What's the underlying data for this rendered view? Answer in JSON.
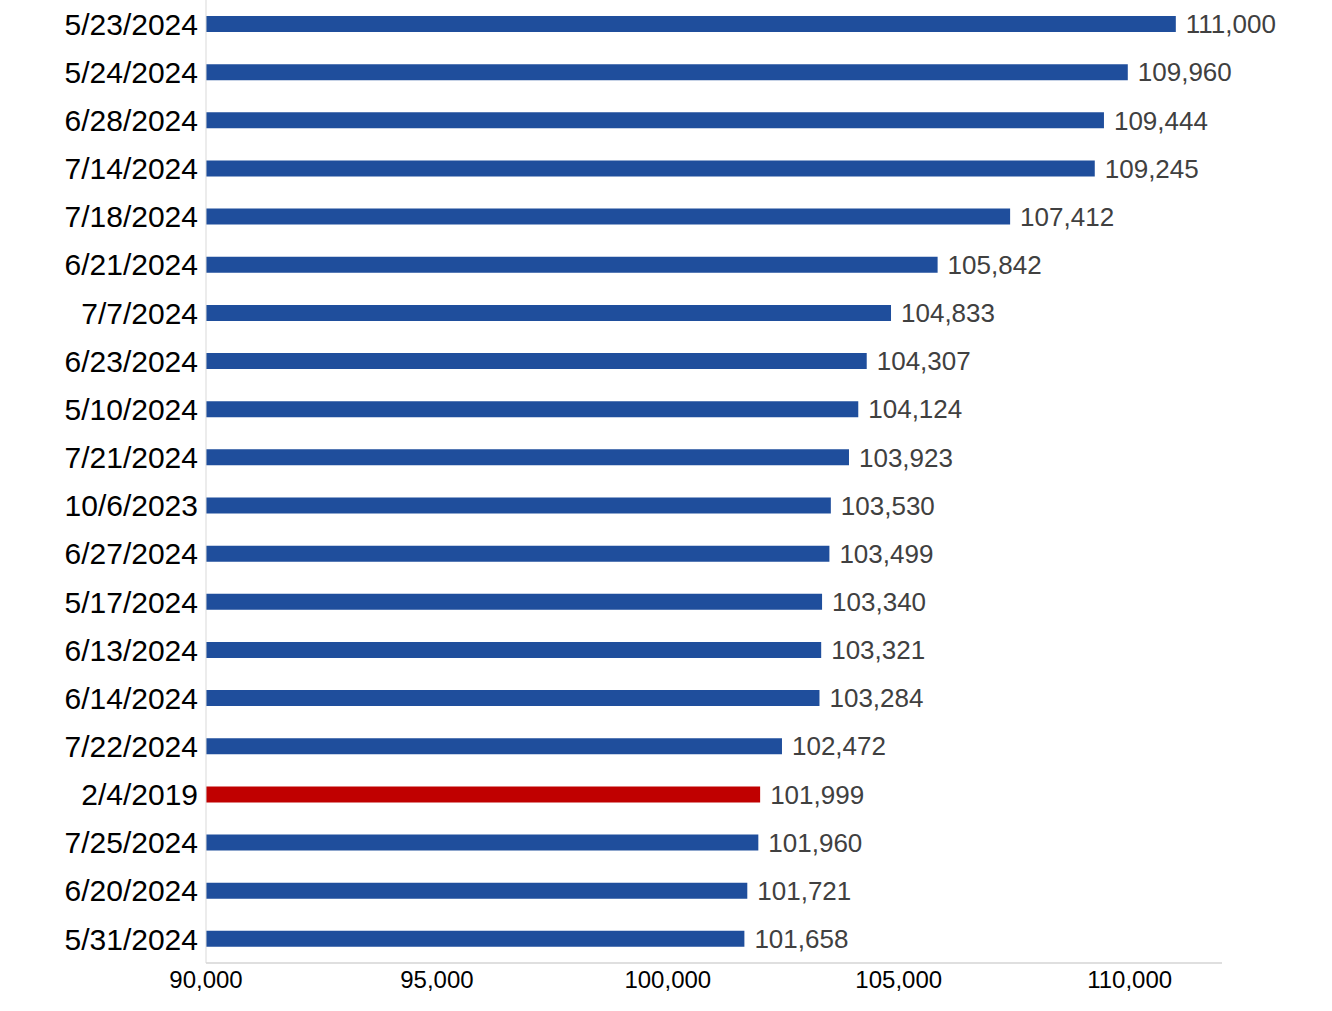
{
  "chart_data": {
    "type": "bar",
    "orientation": "horizontal",
    "categories": [
      "5/23/2024",
      "5/24/2024",
      "6/28/2024",
      "7/14/2024",
      "7/18/2024",
      "6/21/2024",
      "7/7/2024",
      "6/23/2024",
      "5/10/2024",
      "7/21/2024",
      "10/6/2023",
      "6/27/2024",
      "5/17/2024",
      "6/13/2024",
      "6/14/2024",
      "7/22/2024",
      "2/4/2019",
      "7/25/2024",
      "6/20/2024",
      "5/31/2024"
    ],
    "values": [
      111000,
      109960,
      109444,
      109245,
      107412,
      105842,
      104833,
      104307,
      104124,
      103923,
      103530,
      103499,
      103340,
      103321,
      103284,
      102472,
      101999,
      101960,
      101721,
      101658
    ],
    "value_labels": [
      "111,000",
      "109,960",
      "109,444",
      "109,245",
      "107,412",
      "105,842",
      "104,833",
      "104,307",
      "104,124",
      "103,923",
      "103,530",
      "103,499",
      "103,340",
      "103,321",
      "103,284",
      "102,472",
      "101,999",
      "101,960",
      "101,721",
      "101,658"
    ],
    "colors": [
      "#1f4e9c",
      "#1f4e9c",
      "#1f4e9c",
      "#1f4e9c",
      "#1f4e9c",
      "#1f4e9c",
      "#1f4e9c",
      "#1f4e9c",
      "#1f4e9c",
      "#1f4e9c",
      "#1f4e9c",
      "#1f4e9c",
      "#1f4e9c",
      "#1f4e9c",
      "#1f4e9c",
      "#1f4e9c",
      "#c00000",
      "#1f4e9c",
      "#1f4e9c",
      "#1f4e9c"
    ],
    "xlim": [
      90000,
      112000
    ],
    "xticks": [
      {
        "value": 90000,
        "label": "90,000"
      },
      {
        "value": 95000,
        "label": "95,000"
      },
      {
        "value": 100000,
        "label": "100,000"
      },
      {
        "value": 105000,
        "label": "105,000"
      },
      {
        "value": 110000,
        "label": "110,000"
      }
    ],
    "grid": false,
    "data_labels": true
  }
}
